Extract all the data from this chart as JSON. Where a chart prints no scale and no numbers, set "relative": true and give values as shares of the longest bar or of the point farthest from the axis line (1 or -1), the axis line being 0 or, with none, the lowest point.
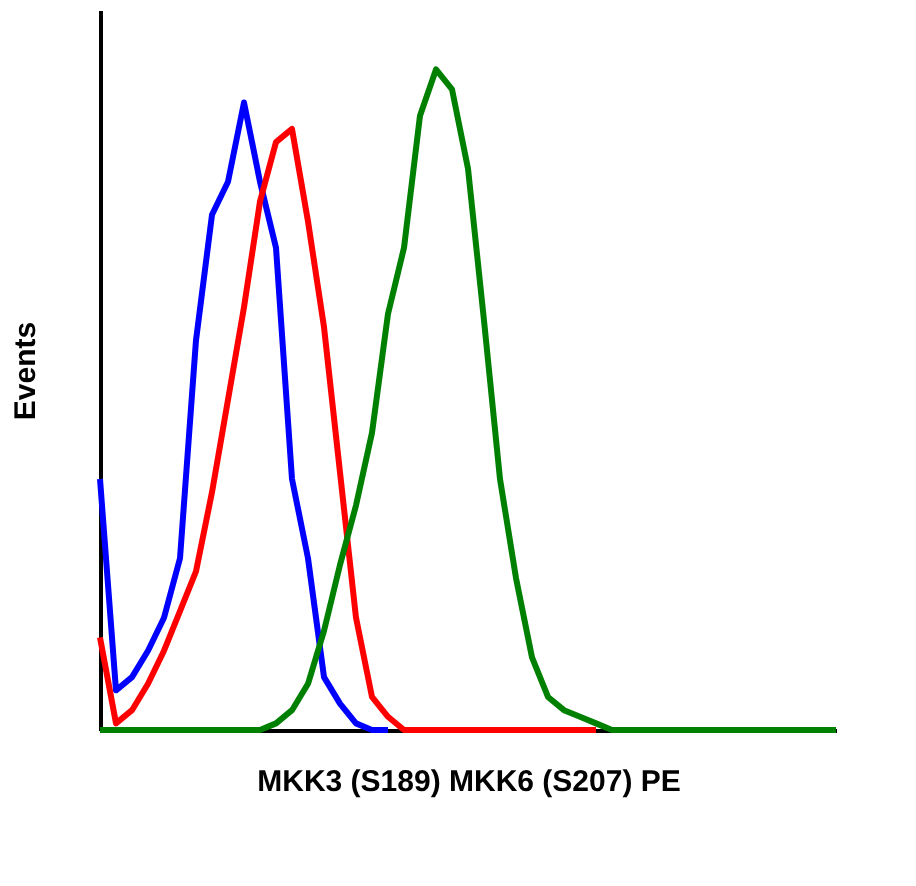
{
  "chart_data": {
    "type": "line",
    "relative": true,
    "xlabel": "MKK3 (S189) MKK6 (S207) PE",
    "ylabel": "Events",
    "categories": [
      null,
      null,
      null,
      null,
      null,
      null,
      null,
      null,
      null,
      null,
      null,
      null,
      null,
      null,
      null,
      null,
      null,
      null,
      null,
      null,
      null,
      null,
      null,
      null,
      null,
      null,
      null,
      null,
      null,
      null,
      null,
      null,
      null,
      null,
      null,
      null,
      null,
      null,
      null,
      null,
      null,
      null,
      null,
      null,
      null,
      null,
      null
    ],
    "series": [
      {
        "color": "#0000ff",
        "values": [
          0.38,
          0.06,
          0.08,
          0.12,
          0.17,
          0.26,
          0.59,
          0.78,
          0.83,
          0.95,
          0.83,
          0.73,
          0.38,
          0.26,
          0.08,
          0.04,
          0.01,
          0,
          0,
          null,
          null,
          null,
          null,
          null,
          null,
          null,
          null,
          null,
          null,
          null,
          null,
          null,
          null,
          null,
          null,
          null,
          null,
          null,
          null,
          null,
          null,
          null,
          null,
          null,
          null,
          null,
          null
        ]
      },
      {
        "color": "#ff0000",
        "values": [
          0.14,
          0.01,
          0.03,
          0.07,
          0.12,
          0.18,
          0.24,
          0.36,
          0.5,
          0.64,
          0.8,
          0.89,
          0.91,
          0.77,
          0.61,
          0.39,
          0.17,
          0.05,
          0.02,
          0,
          0,
          0,
          0,
          0,
          0,
          0,
          0,
          0,
          0,
          0,
          0,
          0,
          null,
          null,
          null,
          null,
          null,
          null,
          null,
          null,
          null,
          null,
          null,
          null,
          null,
          null,
          null
        ]
      },
      {
        "color": "#008000",
        "values": [
          0,
          0,
          0,
          0,
          0,
          0,
          0,
          0,
          0,
          0,
          0,
          0.01,
          0.03,
          0.07,
          0.15,
          0.25,
          0.34,
          0.45,
          0.63,
          0.73,
          0.93,
          1.0,
          0.97,
          0.85,
          0.62,
          0.38,
          0.23,
          0.11,
          0.05,
          0.03,
          0.02,
          0.01,
          0,
          0,
          0,
          0,
          0,
          0,
          0,
          0,
          0,
          0,
          0,
          0,
          0,
          0,
          0
        ]
      }
    ],
    "tick_labels": false,
    "legend": false,
    "grid": false
  }
}
